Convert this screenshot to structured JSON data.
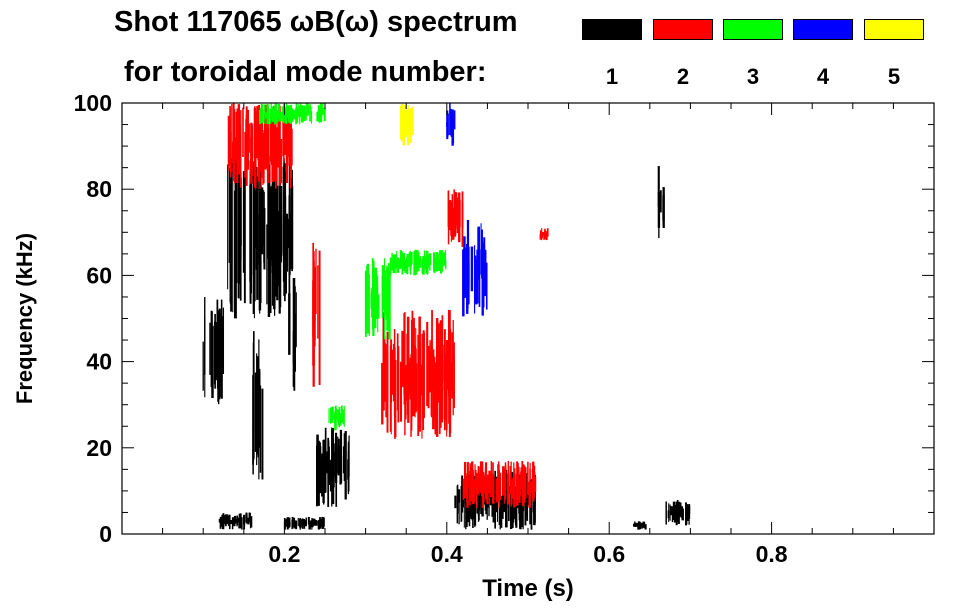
{
  "header": {
    "title_line1": "Shot 117065 ωB(ω) spectrum",
    "title_line2": "for toroidal mode number:"
  },
  "legend": [
    {
      "label": "1",
      "color": "#000000"
    },
    {
      "label": "2",
      "color": "#ff0000"
    },
    {
      "label": "3",
      "color": "#00ff00"
    },
    {
      "label": "4",
      "color": "#0000ff"
    },
    {
      "label": "5",
      "color": "#ffff00"
    }
  ],
  "chart_data": {
    "type": "heatmap",
    "title": "Shot 117065 ωB(ω) spectrum for toroidal mode number",
    "xlabel": "Time (s)",
    "ylabel": "Frequency (kHz)",
    "xlim": [
      0.0,
      1.0
    ],
    "ylim": [
      0,
      100
    ],
    "xticks": [
      0.2,
      0.4,
      0.6,
      0.8
    ],
    "xtick_labels": [
      "0.2",
      "0.4",
      "0.6",
      "0.8"
    ],
    "yticks": [
      0,
      20,
      40,
      60,
      80,
      100
    ],
    "ytick_labels": [
      "0",
      "20",
      "40",
      "60",
      "80",
      "100"
    ],
    "grid": false,
    "regions": [
      {
        "mode": 1,
        "t0": 0.1,
        "t1": 0.125,
        "f0": 30,
        "f1": 55
      },
      {
        "mode": 1,
        "t0": 0.13,
        "t1": 0.21,
        "f0": 50,
        "f1": 88
      },
      {
        "mode": 1,
        "t0": 0.16,
        "t1": 0.175,
        "f0": 9,
        "f1": 48
      },
      {
        "mode": 1,
        "t0": 0.205,
        "t1": 0.215,
        "f0": 30,
        "f1": 60
      },
      {
        "mode": 1,
        "t0": 0.12,
        "t1": 0.16,
        "f0": 1,
        "f1": 5
      },
      {
        "mode": 1,
        "t0": 0.2,
        "t1": 0.25,
        "f0": 1,
        "f1": 4
      },
      {
        "mode": 1,
        "t0": 0.24,
        "t1": 0.28,
        "f0": 6,
        "f1": 25
      },
      {
        "mode": 1,
        "t0": 0.41,
        "t1": 0.51,
        "f0": 1,
        "f1": 15
      },
      {
        "mode": 1,
        "t0": 0.66,
        "t1": 0.668,
        "f0": 68,
        "f1": 86
      },
      {
        "mode": 1,
        "t0": 0.63,
        "t1": 0.645,
        "f0": 1,
        "f1": 3
      },
      {
        "mode": 1,
        "t0": 0.67,
        "t1": 0.7,
        "f0": 2,
        "f1": 8
      },
      {
        "mode": 2,
        "t0": 0.13,
        "t1": 0.21,
        "f0": 80,
        "f1": 100
      },
      {
        "mode": 2,
        "t0": 0.235,
        "t1": 0.245,
        "f0": 34,
        "f1": 72
      },
      {
        "mode": 2,
        "t0": 0.32,
        "t1": 0.41,
        "f0": 22,
        "f1": 52
      },
      {
        "mode": 2,
        "t0": 0.4,
        "t1": 0.42,
        "f0": 66,
        "f1": 80
      },
      {
        "mode": 2,
        "t0": 0.42,
        "t1": 0.51,
        "f0": 6,
        "f1": 17
      },
      {
        "mode": 2,
        "t0": 0.515,
        "t1": 0.525,
        "f0": 68,
        "f1": 71
      },
      {
        "mode": 3,
        "t0": 0.3,
        "t1": 0.33,
        "f0": 45,
        "f1": 64
      },
      {
        "mode": 3,
        "t0": 0.33,
        "t1": 0.4,
        "f0": 60,
        "f1": 66
      },
      {
        "mode": 3,
        "t0": 0.255,
        "t1": 0.275,
        "f0": 24,
        "f1": 30
      },
      {
        "mode": 3,
        "t0": 0.17,
        "t1": 0.25,
        "f0": 95,
        "f1": 100
      },
      {
        "mode": 4,
        "t0": 0.42,
        "t1": 0.45,
        "f0": 50,
        "f1": 73
      },
      {
        "mode": 4,
        "t0": 0.4,
        "t1": 0.41,
        "f0": 90,
        "f1": 100
      },
      {
        "mode": 5,
        "t0": 0.34,
        "t1": 0.36,
        "f0": 90,
        "f1": 100
      }
    ]
  }
}
